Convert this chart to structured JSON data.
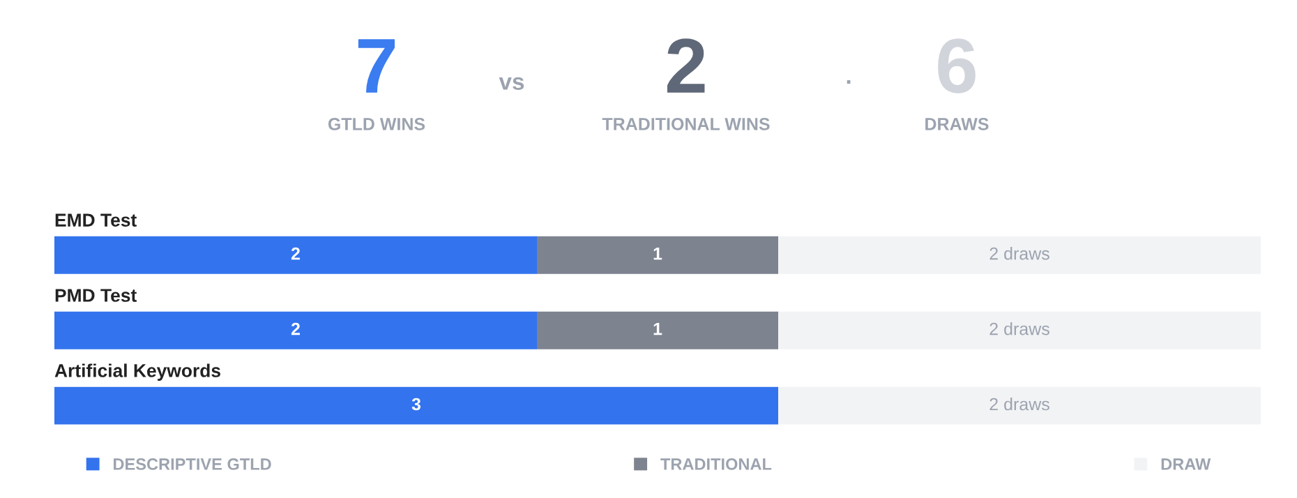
{
  "chart_data": {
    "type": "bar",
    "orientation": "horizontal",
    "stacked": true,
    "categories": [
      "EMD Test",
      "PMD Test",
      "Artificial Keywords"
    ],
    "series": [
      {
        "name": "DESCRIPTIVE GTLD",
        "color": "#3373ee",
        "values": [
          2,
          2,
          3
        ],
        "value_labels": [
          "2",
          "2",
          "3"
        ]
      },
      {
        "name": "TRADITIONAL",
        "color": "#7d838f",
        "values": [
          1,
          1,
          0
        ],
        "value_labels": [
          "1",
          "1",
          null
        ]
      },
      {
        "name": "DRAW",
        "color": "#f2f3f5",
        "values": [
          2,
          2,
          2
        ],
        "value_labels": [
          "2 draws",
          "2 draws",
          "2 draws"
        ]
      }
    ],
    "annotations": [
      "7",
      "GTLD WINS",
      "vs",
      "2",
      "TRADITIONAL WINS",
      "·",
      "6",
      "DRAWS"
    ],
    "legend": "bottom"
  }
}
